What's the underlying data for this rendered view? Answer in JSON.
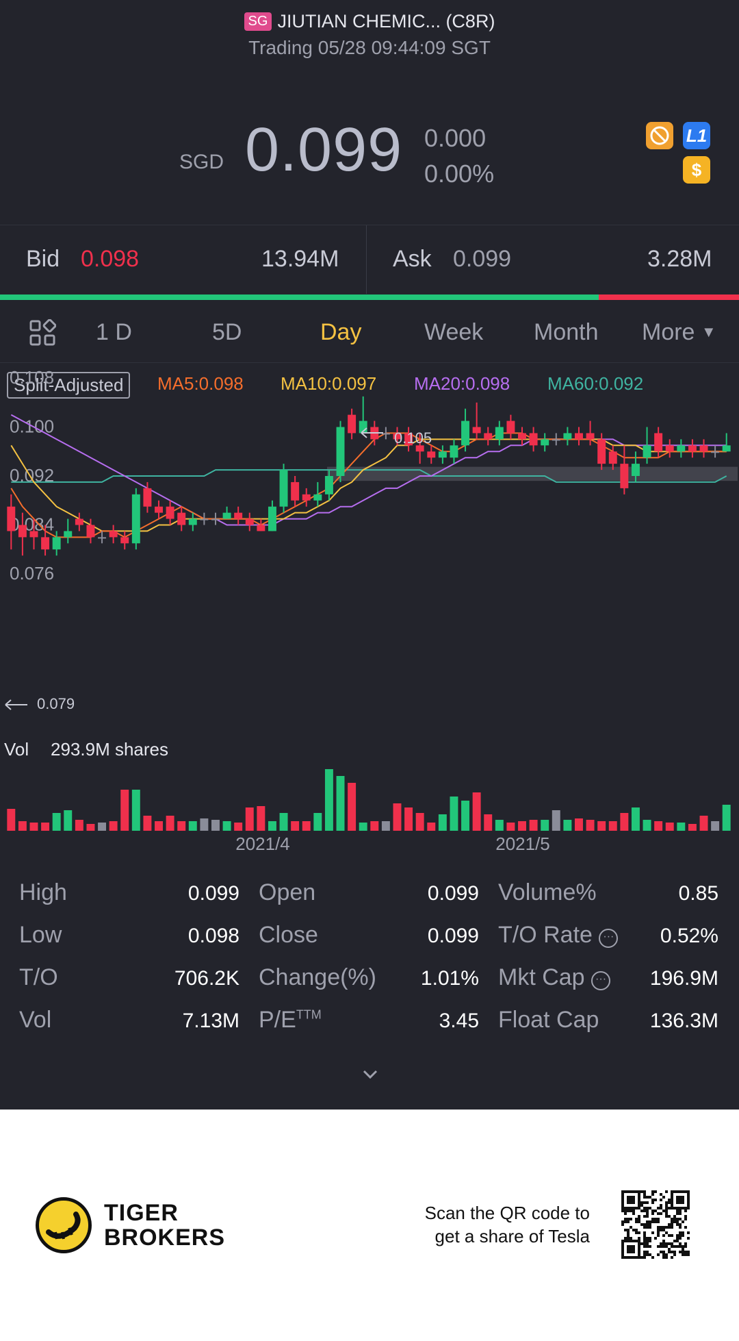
{
  "header": {
    "market_badge": "SG",
    "title": "JIUTIAN CHEMIC... (C8R)",
    "status": "Trading 05/28 09:44:09 SGT",
    "currency": "SGD",
    "price": "0.099",
    "change": "0.000",
    "change_pct": "0.00%",
    "icons": [
      "no-ads-icon",
      "level1-icon",
      "dollar-icon"
    ],
    "level_label": "L1",
    "dollar_label": "$"
  },
  "quote": {
    "bid_label": "Bid",
    "bid_price": "0.098",
    "bid_size": "13.94M",
    "ask_label": "Ask",
    "ask_price": "0.099",
    "ask_size": "3.28M",
    "bid_ratio": 0.81
  },
  "tabs": {
    "items": [
      {
        "label": "1 D"
      },
      {
        "label": "5D"
      },
      {
        "label": "Day"
      },
      {
        "label": "Week"
      },
      {
        "label": "Month"
      },
      {
        "label": "More"
      }
    ],
    "active": "Day"
  },
  "chart_header": {
    "split_label": "Split-Adjusted",
    "ma5": "MA5:0.098",
    "ma10": "MA10:0.097",
    "ma20": "MA20:0.098",
    "ma60": "MA60:0.092"
  },
  "chart_data": {
    "type": "candlestick",
    "y_ticks": [
      "0.108",
      "0.100",
      "0.092",
      "0.084",
      "0.076"
    ],
    "ylim": [
      0.076,
      0.108
    ],
    "high_marker": "0.105",
    "low_marker": "0.079",
    "volume_label": "Vol",
    "volume_value": "293.9M shares",
    "x_ticks": [
      "2021/4",
      "2021/5"
    ],
    "colors": {
      "up": "#22c67a",
      "down": "#f0304c",
      "flat": "#8a8c99",
      "ma5": "#f56e2c",
      "ma10": "#f5c242",
      "ma20": "#b76ef0",
      "ma60": "#3fb4a1"
    },
    "candles": [
      [
        0.087,
        0.083,
        0.089,
        0.08
      ],
      [
        0.084,
        0.082,
        0.086,
        0.079
      ],
      [
        0.083,
        0.082,
        0.085,
        0.08
      ],
      [
        0.082,
        0.08,
        0.084,
        0.079
      ],
      [
        0.08,
        0.082,
        0.083,
        0.079
      ],
      [
        0.082,
        0.083,
        0.085,
        0.081
      ],
      [
        0.085,
        0.084,
        0.086,
        0.083
      ],
      [
        0.084,
        0.082,
        0.085,
        0.081
      ],
      [
        0.082,
        0.082,
        0.083,
        0.081
      ],
      [
        0.083,
        0.082,
        0.084,
        0.081
      ],
      [
        0.082,
        0.081,
        0.083,
        0.08
      ],
      [
        0.081,
        0.089,
        0.09,
        0.08
      ],
      [
        0.09,
        0.087,
        0.091,
        0.086
      ],
      [
        0.087,
        0.086,
        0.088,
        0.085
      ],
      [
        0.087,
        0.085,
        0.088,
        0.084
      ],
      [
        0.086,
        0.084,
        0.087,
        0.083
      ],
      [
        0.084,
        0.085,
        0.086,
        0.083
      ],
      [
        0.085,
        0.085,
        0.086,
        0.084
      ],
      [
        0.085,
        0.085,
        0.086,
        0.084
      ],
      [
        0.085,
        0.086,
        0.087,
        0.085
      ],
      [
        0.086,
        0.085,
        0.087,
        0.084
      ],
      [
        0.085,
        0.084,
        0.086,
        0.083
      ],
      [
        0.084,
        0.083,
        0.085,
        0.083
      ],
      [
        0.083,
        0.087,
        0.088,
        0.083
      ],
      [
        0.087,
        0.093,
        0.094,
        0.086
      ],
      [
        0.091,
        0.088,
        0.092,
        0.087
      ],
      [
        0.089,
        0.088,
        0.09,
        0.087
      ],
      [
        0.088,
        0.089,
        0.091,
        0.087
      ],
      [
        0.089,
        0.092,
        0.093,
        0.088
      ],
      [
        0.092,
        0.1,
        0.101,
        0.091
      ],
      [
        0.102,
        0.099,
        0.103,
        0.098
      ],
      [
        0.099,
        0.101,
        0.105,
        0.099
      ],
      [
        0.1,
        0.098,
        0.101,
        0.097
      ],
      [
        0.099,
        0.099,
        0.1,
        0.098
      ],
      [
        0.099,
        0.098,
        0.1,
        0.097
      ],
      [
        0.099,
        0.097,
        0.1,
        0.096
      ],
      [
        0.097,
        0.096,
        0.099,
        0.094
      ],
      [
        0.096,
        0.095,
        0.097,
        0.094
      ],
      [
        0.095,
        0.096,
        0.097,
        0.094
      ],
      [
        0.095,
        0.097,
        0.098,
        0.094
      ],
      [
        0.097,
        0.101,
        0.103,
        0.096
      ],
      [
        0.1,
        0.099,
        0.104,
        0.098
      ],
      [
        0.099,
        0.098,
        0.1,
        0.097
      ],
      [
        0.098,
        0.1,
        0.101,
        0.097
      ],
      [
        0.101,
        0.099,
        0.102,
        0.098
      ],
      [
        0.099,
        0.098,
        0.1,
        0.097
      ],
      [
        0.099,
        0.097,
        0.1,
        0.096
      ],
      [
        0.097,
        0.098,
        0.099,
        0.096
      ],
      [
        0.098,
        0.098,
        0.099,
        0.097
      ],
      [
        0.098,
        0.099,
        0.1,
        0.097
      ],
      [
        0.099,
        0.098,
        0.1,
        0.097
      ],
      [
        0.099,
        0.098,
        0.101,
        0.097
      ],
      [
        0.098,
        0.094,
        0.099,
        0.093
      ],
      [
        0.096,
        0.094,
        0.097,
        0.093
      ],
      [
        0.094,
        0.09,
        0.097,
        0.089
      ],
      [
        0.092,
        0.094,
        0.096,
        0.091
      ],
      [
        0.095,
        0.097,
        0.1,
        0.094
      ],
      [
        0.099,
        0.096,
        0.1,
        0.095
      ],
      [
        0.097,
        0.096,
        0.098,
        0.095
      ],
      [
        0.096,
        0.097,
        0.098,
        0.095
      ],
      [
        0.097,
        0.096,
        0.098,
        0.095
      ],
      [
        0.097,
        0.096,
        0.098,
        0.095
      ],
      [
        0.096,
        0.096,
        0.097,
        0.095
      ],
      [
        0.096,
        0.097,
        0.099,
        0.096
      ]
    ],
    "ma5": [
      0.09,
      0.087,
      0.085,
      0.083,
      0.082,
      0.082,
      0.082,
      0.082,
      0.083,
      0.083,
      0.082,
      0.083,
      0.084,
      0.085,
      0.086,
      0.087,
      0.086,
      0.085,
      0.085,
      0.085,
      0.085,
      0.085,
      0.084,
      0.085,
      0.086,
      0.087,
      0.088,
      0.089,
      0.09,
      0.092,
      0.094,
      0.096,
      0.098,
      0.099,
      0.099,
      0.099,
      0.098,
      0.097,
      0.096,
      0.096,
      0.097,
      0.098,
      0.098,
      0.099,
      0.099,
      0.099,
      0.098,
      0.098,
      0.098,
      0.098,
      0.098,
      0.098,
      0.097,
      0.096,
      0.095,
      0.095,
      0.095,
      0.095,
      0.096,
      0.096,
      0.096,
      0.096,
      0.096,
      0.096
    ],
    "ma10": [
      0.097,
      0.094,
      0.091,
      0.089,
      0.087,
      0.086,
      0.085,
      0.084,
      0.083,
      0.083,
      0.083,
      0.083,
      0.083,
      0.084,
      0.084,
      0.085,
      0.085,
      0.085,
      0.085,
      0.085,
      0.085,
      0.085,
      0.085,
      0.085,
      0.085,
      0.086,
      0.086,
      0.087,
      0.088,
      0.09,
      0.091,
      0.093,
      0.094,
      0.095,
      0.097,
      0.097,
      0.098,
      0.098,
      0.098,
      0.098,
      0.098,
      0.098,
      0.098,
      0.098,
      0.098,
      0.098,
      0.098,
      0.098,
      0.098,
      0.098,
      0.098,
      0.098,
      0.098,
      0.097,
      0.097,
      0.097,
      0.096,
      0.096,
      0.096,
      0.096,
      0.096,
      0.096,
      0.096,
      0.096
    ],
    "ma20": [
      0.102,
      0.101,
      0.1,
      0.099,
      0.098,
      0.097,
      0.096,
      0.095,
      0.094,
      0.093,
      0.092,
      0.091,
      0.09,
      0.089,
      0.088,
      0.087,
      0.086,
      0.085,
      0.085,
      0.084,
      0.084,
      0.084,
      0.084,
      0.084,
      0.085,
      0.085,
      0.085,
      0.086,
      0.086,
      0.087,
      0.087,
      0.088,
      0.089,
      0.09,
      0.09,
      0.091,
      0.092,
      0.092,
      0.093,
      0.094,
      0.095,
      0.095,
      0.096,
      0.096,
      0.097,
      0.097,
      0.098,
      0.098,
      0.098,
      0.098,
      0.098,
      0.098,
      0.098,
      0.098,
      0.097,
      0.097,
      0.097,
      0.097,
      0.097,
      0.097,
      0.097,
      0.097,
      0.097,
      0.097
    ],
    "ma60": [
      0.091,
      0.091,
      0.091,
      0.091,
      0.091,
      0.091,
      0.091,
      0.091,
      0.091,
      0.092,
      0.092,
      0.092,
      0.092,
      0.092,
      0.092,
      0.092,
      0.092,
      0.092,
      0.093,
      0.093,
      0.093,
      0.093,
      0.093,
      0.093,
      0.093,
      0.093,
      0.093,
      0.093,
      0.093,
      0.093,
      0.093,
      0.093,
      0.093,
      0.093,
      0.093,
      0.093,
      0.093,
      0.092,
      0.092,
      0.092,
      0.092,
      0.092,
      0.092,
      0.092,
      0.092,
      0.092,
      0.092,
      0.092,
      0.091,
      0.091,
      0.091,
      0.091,
      0.091,
      0.091,
      0.091,
      0.091,
      0.091,
      0.091,
      0.091,
      0.091,
      0.091,
      0.091,
      0.091,
      0.092
    ],
    "volumes": [
      32,
      14,
      12,
      12,
      26,
      30,
      16,
      10,
      12,
      14,
      60,
      60,
      22,
      14,
      22,
      14,
      14,
      18,
      16,
      14,
      12,
      34,
      36,
      14,
      26,
      14,
      14,
      26,
      90,
      80,
      70,
      12,
      14,
      14,
      40,
      34,
      26,
      12,
      24,
      50,
      44,
      56,
      24,
      16,
      12,
      14,
      16,
      16,
      30,
      16,
      18,
      16,
      14,
      14,
      26,
      34,
      16,
      14,
      12,
      12,
      10,
      22,
      14,
      38
    ]
  },
  "stats": {
    "col1": [
      {
        "label": "High",
        "value": "0.099"
      },
      {
        "label": "Low",
        "value": "0.098"
      },
      {
        "label": "T/O",
        "value": "706.2K"
      },
      {
        "label": "Vol",
        "value": "7.13M"
      }
    ],
    "col2": [
      {
        "label": "Open",
        "value": "0.099"
      },
      {
        "label": "Close",
        "value": "0.099"
      },
      {
        "label": "Change(%)",
        "value": "1.01%"
      },
      {
        "label": "P/E",
        "sup": "TTM",
        "value": "3.45"
      }
    ],
    "col3": [
      {
        "label": "Volume%",
        "value": "0.85"
      },
      {
        "label": "T/O Rate",
        "value": "0.52%"
      },
      {
        "label": "Mkt Cap",
        "value": "196.9M"
      },
      {
        "label": "Float Cap",
        "value": "136.3M"
      }
    ]
  },
  "footer": {
    "brand_line1": "TIGER",
    "brand_line2": "BROKERS",
    "promo_line1": "Scan the QR code to",
    "promo_line2": "get a share of Tesla"
  }
}
